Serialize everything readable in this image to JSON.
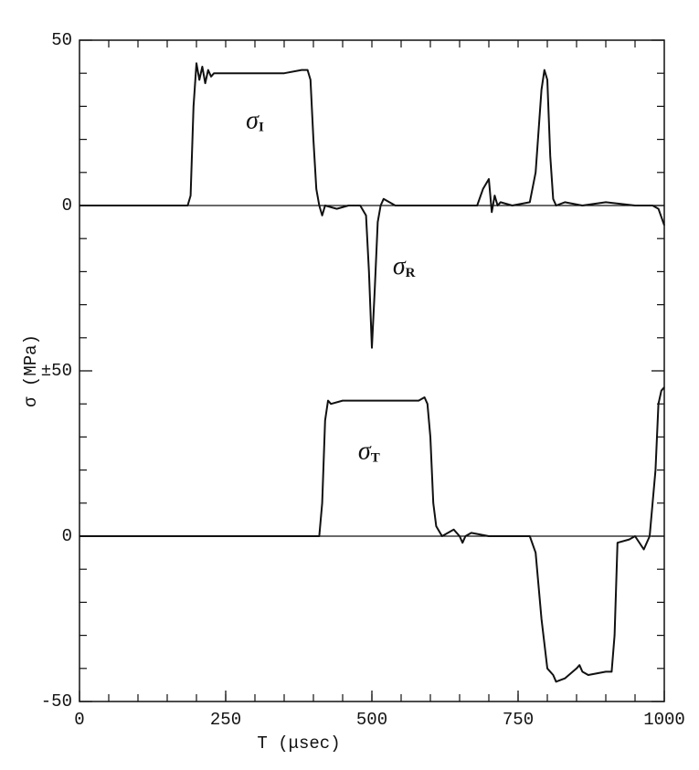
{
  "chart_data": [
    {
      "type": "line",
      "ylabel": "σ (MPa)",
      "xlim": [
        0,
        1000
      ],
      "ylim": [
        -50,
        50
      ],
      "yticks": [
        50,
        0,
        {
          "value": -50,
          "label": "±50"
        }
      ],
      "yticks_minor": [
        -40,
        -30,
        -20,
        -10,
        10,
        20,
        30,
        40
      ],
      "xticks_minor": [
        50,
        100,
        150,
        200,
        250,
        300,
        350,
        400,
        450,
        500,
        550,
        600,
        650,
        700,
        750,
        800,
        850,
        900,
        950
      ],
      "zero_line": true,
      "color": "#111",
      "annotations": [
        {
          "text": "σ",
          "subscript": "I",
          "x": 300,
          "y": 25
        },
        {
          "text": "σ",
          "subscript": "R",
          "x": 555,
          "y": -19
        }
      ],
      "x": [
        0,
        50,
        100,
        150,
        185,
        190,
        195,
        200,
        205,
        210,
        215,
        220,
        225,
        230,
        250,
        300,
        350,
        380,
        390,
        395,
        400,
        405,
        410,
        415,
        420,
        440,
        460,
        480,
        490,
        495,
        500,
        505,
        510,
        515,
        520,
        530,
        540,
        600,
        680,
        690,
        700,
        705,
        710,
        715,
        720,
        740,
        770,
        780,
        790,
        795,
        800,
        805,
        810,
        815,
        830,
        860,
        900,
        950,
        980,
        990,
        1000
      ],
      "values": [
        0,
        0,
        0,
        0,
        0,
        3,
        30,
        43,
        38,
        42,
        37,
        41,
        39,
        40,
        40,
        40,
        40,
        41,
        41,
        38,
        20,
        5,
        0,
        -3,
        0,
        -1,
        0,
        0,
        -3,
        -20,
        -43,
        -25,
        -5,
        0,
        2,
        1,
        0,
        0,
        0,
        5,
        8,
        -2,
        3,
        0,
        1,
        0,
        1,
        10,
        35,
        41,
        38,
        15,
        2,
        0,
        1,
        0,
        1,
        0,
        0,
        -1,
        -6
      ]
    },
    {
      "type": "line",
      "xlabel": "T (μsec)",
      "xlim": [
        0,
        1000
      ],
      "ylim": [
        -50,
        50
      ],
      "xticks": [
        0,
        250,
        500,
        750,
        1000
      ],
      "yticks": [
        0,
        -50
      ],
      "yticks_minor": [
        -40,
        -30,
        -20,
        -10,
        10,
        20,
        30,
        40
      ],
      "xticks_minor": [
        50,
        100,
        150,
        200,
        250,
        300,
        350,
        400,
        450,
        500,
        550,
        600,
        650,
        700,
        750,
        800,
        850,
        900,
        950
      ],
      "zero_line": true,
      "color": "#111",
      "annotations": [
        {
          "text": "σ",
          "subscript": "T",
          "x": 495,
          "y": 25
        }
      ],
      "x": [
        0,
        100,
        200,
        300,
        400,
        410,
        415,
        420,
        425,
        430,
        450,
        500,
        550,
        580,
        590,
        595,
        600,
        605,
        610,
        620,
        630,
        640,
        650,
        655,
        660,
        670,
        700,
        750,
        770,
        780,
        790,
        800,
        810,
        815,
        830,
        850,
        855,
        860,
        870,
        900,
        910,
        915,
        920,
        940,
        950,
        965,
        975,
        985,
        990,
        995,
        1000
      ],
      "values": [
        0,
        0,
        0,
        0,
        0,
        0,
        10,
        35,
        41,
        40,
        41,
        41,
        41,
        41,
        42,
        40,
        30,
        10,
        3,
        0,
        1,
        2,
        0,
        -2,
        0,
        1,
        0,
        0,
        0,
        -5,
        -25,
        -40,
        -42,
        -44,
        -43,
        -40,
        -39,
        -41,
        -42,
        -41,
        -41,
        -30,
        -2,
        -1,
        0,
        -4,
        0,
        20,
        40,
        44,
        45
      ]
    }
  ]
}
